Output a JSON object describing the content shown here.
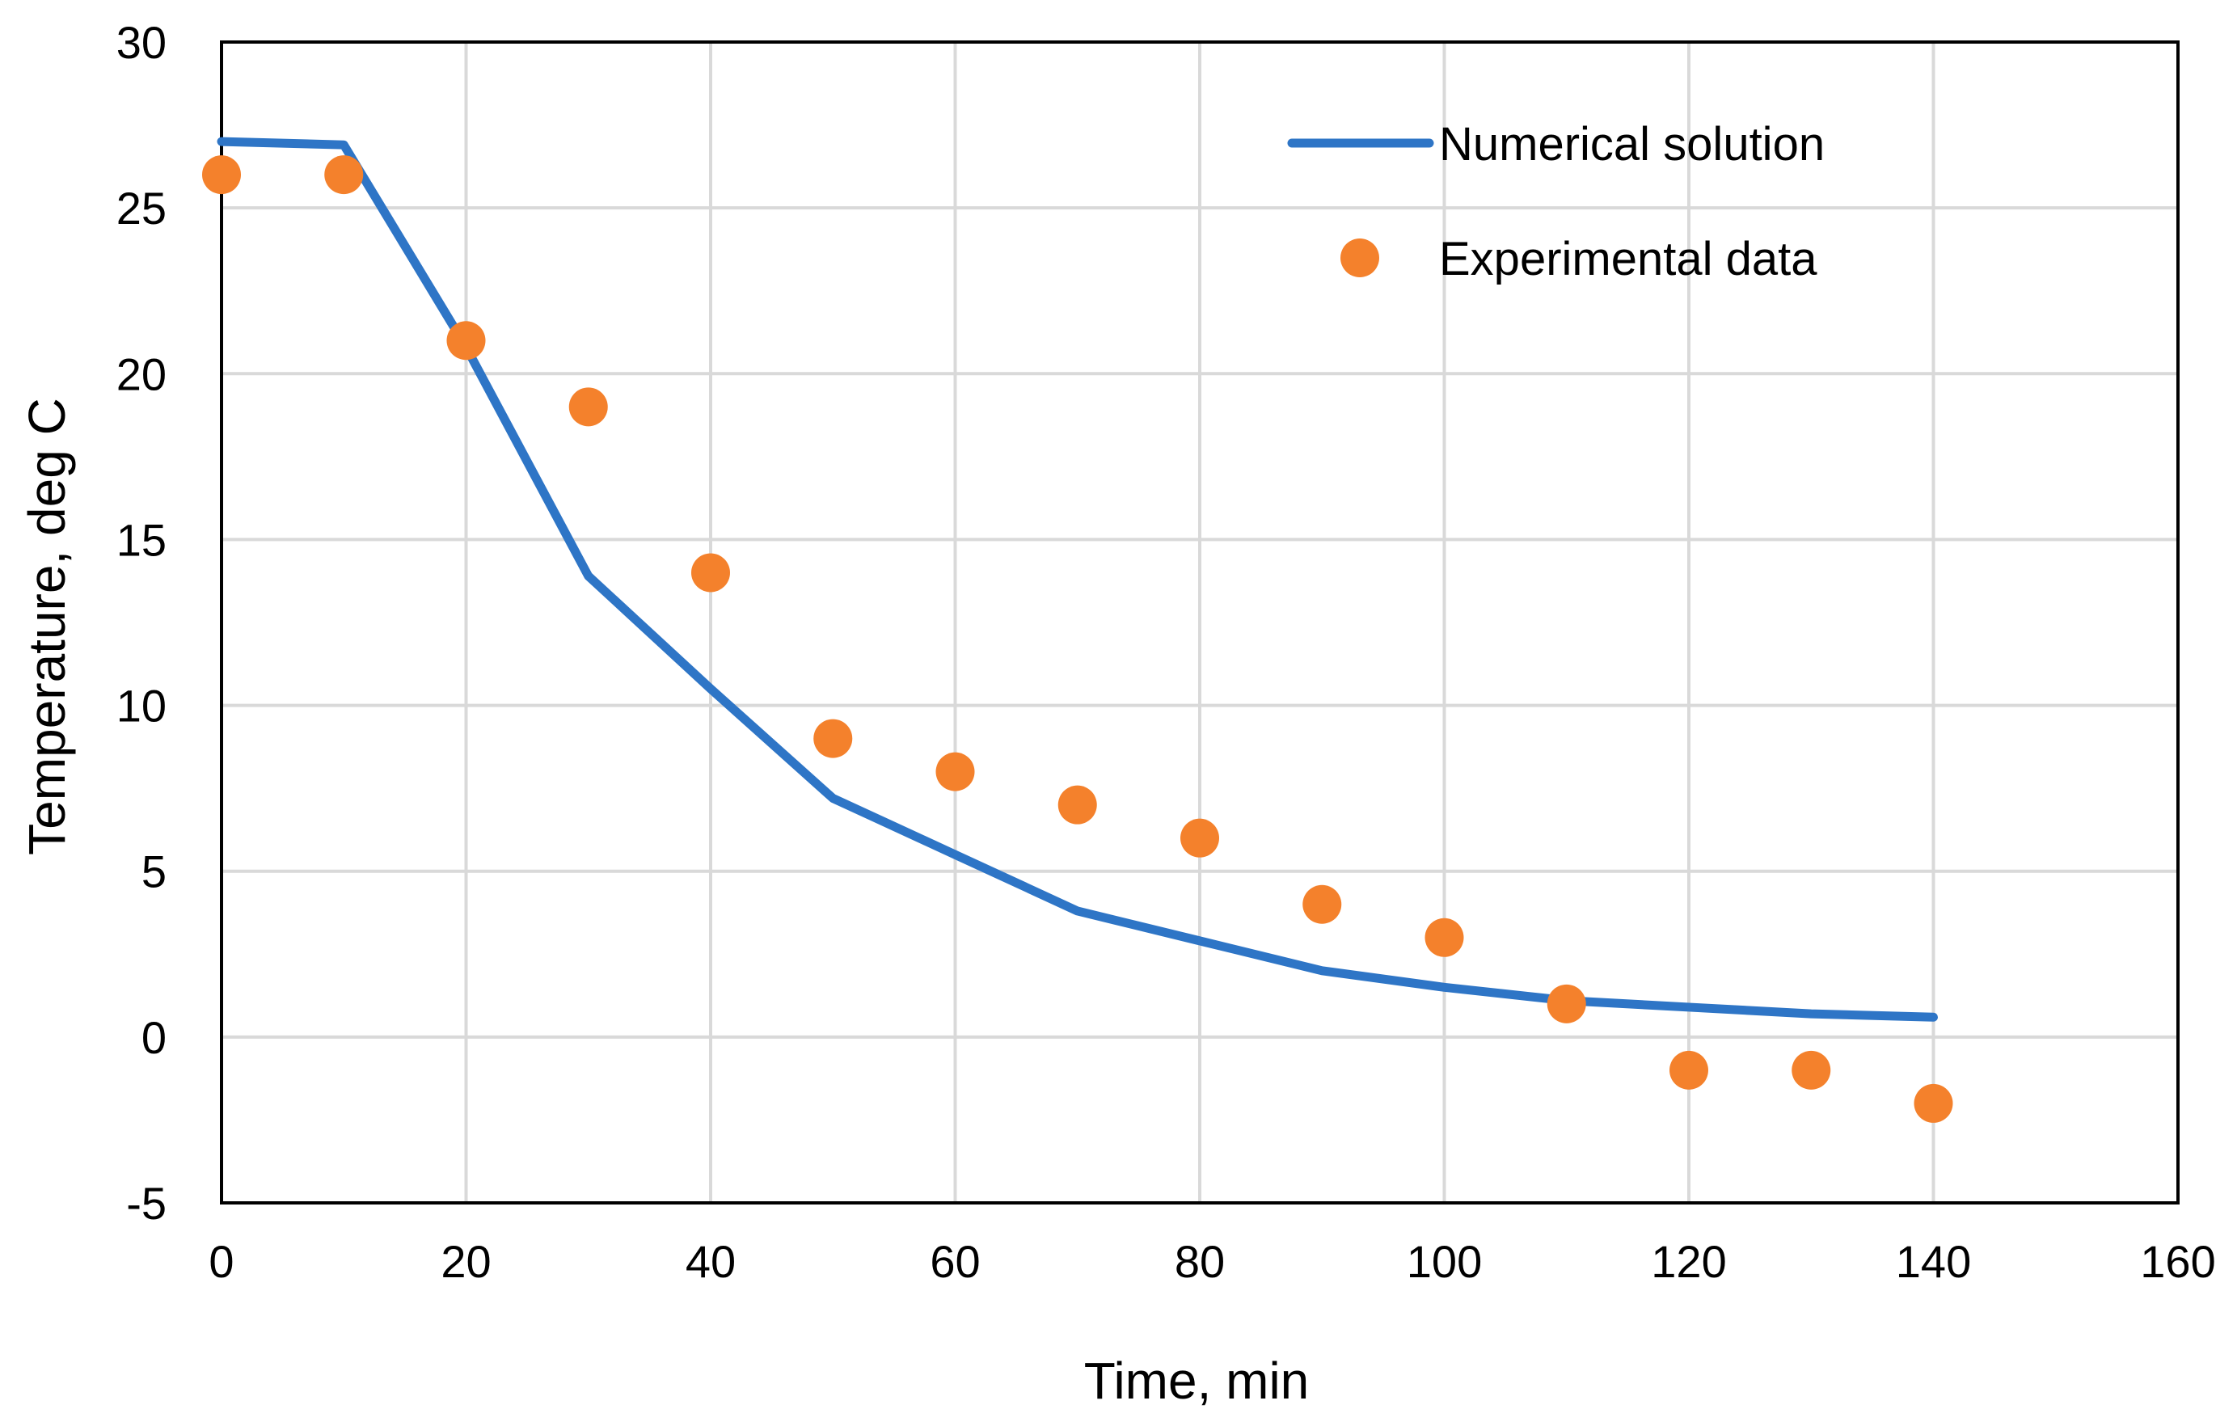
{
  "chart_data": {
    "type": "line+scatter",
    "title": "",
    "xlabel": "Time, min",
    "ylabel": "Temperature, deg C",
    "xlim": [
      0,
      160
    ],
    "ylim": [
      -5,
      30
    ],
    "x_ticks": [
      0,
      20,
      40,
      60,
      80,
      100,
      120,
      140,
      160
    ],
    "y_ticks": [
      -5,
      0,
      5,
      10,
      15,
      20,
      25,
      30
    ],
    "x_tick_labels": [
      "0",
      "20",
      "40",
      "60",
      "80",
      "100",
      "120",
      "140",
      "160"
    ],
    "y_tick_labels": [
      "-5",
      "0",
      "5",
      "10",
      "15",
      "20",
      "25",
      "30"
    ],
    "grid": true,
    "legend_position": "top-right",
    "series": [
      {
        "name": "Numerical solution",
        "kind": "line",
        "color": "#2E75C6",
        "x": [
          0,
          10,
          20,
          30,
          40,
          50,
          60,
          70,
          80,
          90,
          100,
          110,
          120,
          130,
          140
        ],
        "y": [
          27,
          26.9,
          20.8,
          13.9,
          10.5,
          7.2,
          5.5,
          3.8,
          2.9,
          2.0,
          1.5,
          1.1,
          0.9,
          0.7,
          0.6
        ]
      },
      {
        "name": "Experimental data",
        "kind": "scatter",
        "color": "#F4812C",
        "x": [
          0,
          10,
          20,
          30,
          40,
          50,
          60,
          70,
          80,
          90,
          100,
          110,
          120,
          130,
          140
        ],
        "y": [
          26,
          26,
          21,
          19,
          14,
          9,
          8,
          7,
          6,
          4,
          3,
          1,
          -1,
          -1,
          -2
        ]
      }
    ]
  }
}
